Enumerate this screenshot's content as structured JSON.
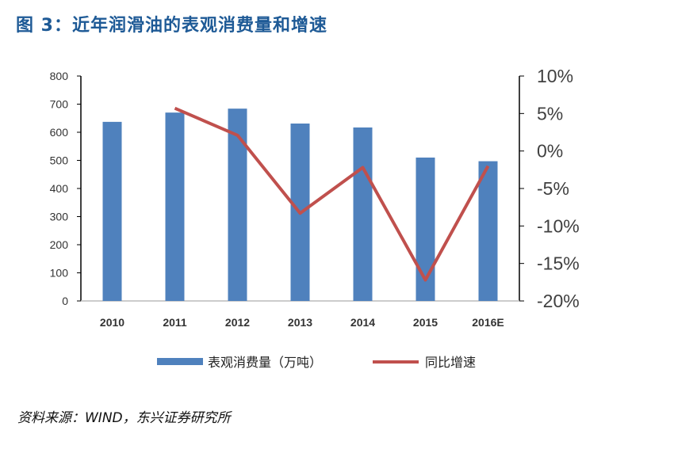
{
  "title": "图 3：近年润滑油的表观消费量和增速",
  "source": "资料来源：WIND，东兴证券研究所",
  "chart_data": {
    "type": "bar+line",
    "title": "图 3：近年润滑油的表观消费量和增速",
    "categories": [
      "2010",
      "2011",
      "2012",
      "2013",
      "2014",
      "2015",
      "2016E"
    ],
    "series": [
      {
        "name": "表观消费量（万吨）",
        "type": "bar",
        "axis": "left",
        "color": "#4f81bd",
        "values": [
          637,
          670,
          684,
          631,
          617,
          510,
          497
        ]
      },
      {
        "name": "同比增速",
        "type": "line",
        "axis": "right",
        "color": "#c0504d",
        "values": [
          null,
          5.7,
          2.1,
          -8.3,
          -2.2,
          -17.2,
          -2.0
        ]
      }
    ],
    "left_axis": {
      "ylim": [
        0,
        800
      ],
      "ticks": [
        "0",
        "100",
        "200",
        "300",
        "400",
        "500",
        "600",
        "700",
        "800"
      ]
    },
    "right_axis": {
      "ylim": [
        -20,
        10
      ],
      "unit": "%",
      "ticks": [
        "-20%",
        "-15%",
        "-10%",
        "-5%",
        "0%",
        "5%",
        "10%"
      ]
    },
    "grid": false,
    "legend": "bottom"
  }
}
